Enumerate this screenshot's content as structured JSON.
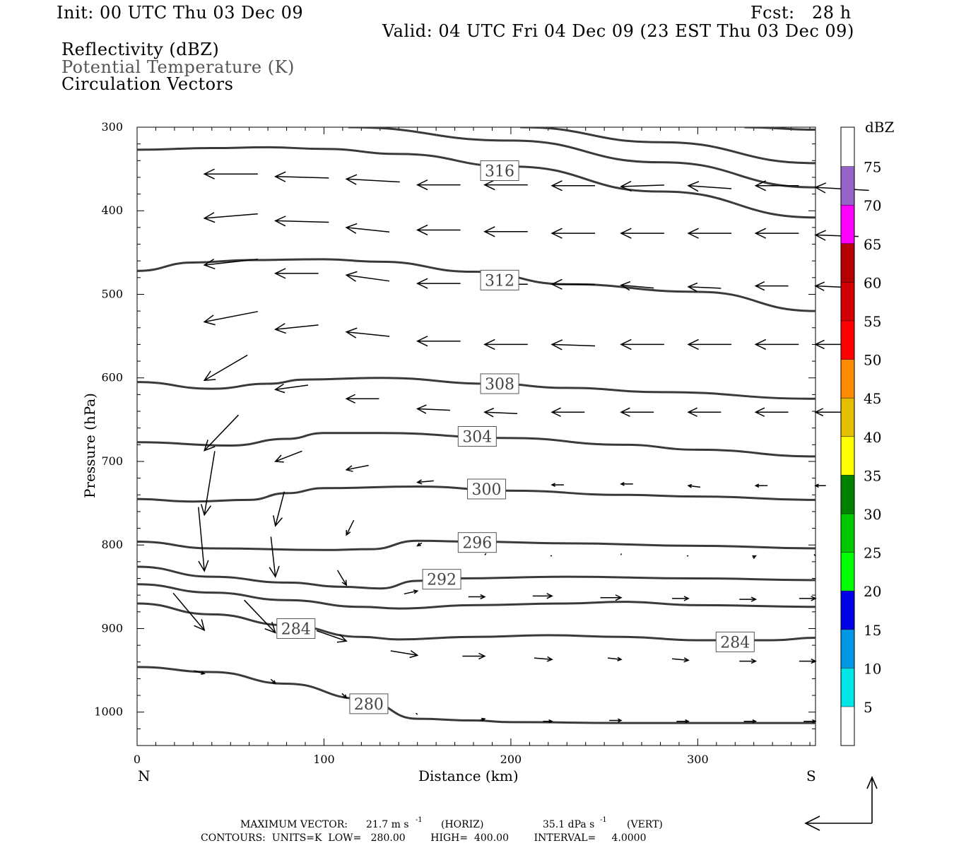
{
  "header": {
    "init": "Init: 00 UTC Thu 03 Dec 09",
    "fcst": "Fcst:   28 h",
    "valid": "Valid: 04 UTC Fri 04 Dec 09 (23 EST Thu 03 Dec 09)",
    "field1": "Reflectivity (dBZ)",
    "field2": "Potential Temperature (K)",
    "field3": "Circulation Vectors"
  },
  "footer": {
    "max_vector_label": "MAXIMUM VECTOR:",
    "max_horiz": "21.7 m s",
    "max_horiz_unit": "(HORIZ)",
    "max_vert": "35.1 dPa s",
    "max_vert_unit": "(VERT)",
    "exponent": "-1",
    "contours": "CONTOURS:  UNITS=K  LOW=   280.00        HIGH=  400.00        INTERVAL=     4.0000"
  },
  "colors": {
    "contour": "#3a3a3a",
    "vector": "#000000",
    "scale": [
      "#00e5e5",
      "#0096e6",
      "#0000e6",
      "#00ff00",
      "#00c800",
      "#008200",
      "#ffff00",
      "#e6be00",
      "#ff8c00",
      "#ff0000",
      "#d20000",
      "#b40000",
      "#ff00ff",
      "#9664c8",
      "#ffffff"
    ]
  },
  "chart_data": {
    "type": "cross-section",
    "xlabel": "Distance (km)",
    "ylabel": "Pressure (hPa)",
    "xlim": [
      0,
      363
    ],
    "ylim": [
      300,
      1040
    ],
    "xticks": [
      0,
      100,
      200,
      300
    ],
    "yticks": [
      300,
      400,
      500,
      600,
      700,
      800,
      900,
      1000
    ],
    "end_left": "N",
    "end_right": "S",
    "colorbar": {
      "title": "dBZ",
      "levels": [
        5,
        10,
        15,
        20,
        25,
        30,
        35,
        40,
        45,
        50,
        55,
        60,
        65,
        70,
        75
      ]
    },
    "contours": [
      {
        "value": 280,
        "label": "280",
        "label_at": [
          124,
          990
        ],
        "points": [
          [
            0,
            946
          ],
          [
            40,
            952
          ],
          [
            80,
            966
          ],
          [
            120,
            984
          ],
          [
            150,
            1008
          ],
          [
            180,
            1010
          ],
          [
            200,
            1012
          ],
          [
            260,
            1013
          ],
          [
            363,
            1013
          ]
        ]
      },
      {
        "value": 284,
        "label": "284",
        "label_at": [
          85,
          900
        ],
        "points": [
          [
            0,
            870
          ],
          [
            40,
            883
          ],
          [
            80,
            896
          ],
          [
            120,
            910
          ],
          [
            140,
            913
          ],
          [
            180,
            910
          ],
          [
            220,
            908
          ],
          [
            260,
            910
          ],
          [
            300,
            914
          ],
          [
            340,
            914
          ],
          [
            363,
            911
          ]
        ]
      },
      {
        "value": 284,
        "label": "284",
        "label_at": [
          320,
          916
        ],
        "points": []
      },
      {
        "value": 288,
        "label": "",
        "label_at": null,
        "points": [
          [
            0,
            847
          ],
          [
            40,
            857
          ],
          [
            80,
            866
          ],
          [
            120,
            874
          ],
          [
            140,
            876
          ],
          [
            180,
            872
          ],
          [
            230,
            870
          ],
          [
            260,
            868
          ],
          [
            300,
            872
          ],
          [
            363,
            874
          ]
        ]
      },
      {
        "value": 292,
        "label": "292",
        "label_at": [
          163,
          841
        ],
        "points": [
          [
            0,
            826
          ],
          [
            40,
            838
          ],
          [
            80,
            845
          ],
          [
            110,
            850
          ],
          [
            130,
            852
          ],
          [
            150,
            843
          ],
          [
            170,
            840
          ],
          [
            230,
            838
          ],
          [
            300,
            840
          ],
          [
            363,
            842
          ]
        ]
      },
      {
        "value": 296,
        "label": "296",
        "label_at": [
          182,
          797
        ],
        "points": [
          [
            0,
            796
          ],
          [
            40,
            804
          ],
          [
            100,
            806
          ],
          [
            125,
            805
          ],
          [
            150,
            795
          ],
          [
            180,
            796
          ],
          [
            230,
            798
          ],
          [
            300,
            801
          ],
          [
            363,
            804
          ]
        ]
      },
      {
        "value": 300,
        "label": "300",
        "label_at": [
          187,
          733
        ],
        "points": [
          [
            0,
            745
          ],
          [
            30,
            748
          ],
          [
            60,
            746
          ],
          [
            80,
            738
          ],
          [
            100,
            732
          ],
          [
            150,
            730
          ],
          [
            200,
            735
          ],
          [
            260,
            740
          ],
          [
            300,
            742
          ],
          [
            363,
            746
          ]
        ]
      },
      {
        "value": 304,
        "label": "304",
        "label_at": [
          182,
          670
        ],
        "points": [
          [
            0,
            677
          ],
          [
            50,
            681
          ],
          [
            80,
            673
          ],
          [
            100,
            666
          ],
          [
            130,
            666
          ],
          [
            200,
            672
          ],
          [
            260,
            680
          ],
          [
            300,
            686
          ],
          [
            363,
            694
          ]
        ]
      },
      {
        "value": 308,
        "label": "308",
        "label_at": [
          194,
          607
        ],
        "points": [
          [
            0,
            605
          ],
          [
            40,
            613
          ],
          [
            70,
            607
          ],
          [
            90,
            602
          ],
          [
            130,
            600
          ],
          [
            190,
            607
          ],
          [
            230,
            612
          ],
          [
            280,
            617
          ],
          [
            363,
            625
          ]
        ]
      },
      {
        "value": 312,
        "label": "312",
        "label_at": [
          194,
          483
        ],
        "points": [
          [
            0,
            472
          ],
          [
            30,
            462
          ],
          [
            60,
            459
          ],
          [
            100,
            458
          ],
          [
            130,
            461
          ],
          [
            180,
            473
          ],
          [
            230,
            488
          ],
          [
            300,
            497
          ],
          [
            363,
            520
          ]
        ]
      },
      {
        "value": 316,
        "label": "316",
        "label_at": [
          194,
          352
        ],
        "points": [
          [
            113,
            300
          ],
          [
            200,
            316
          ],
          [
            280,
            342
          ],
          [
            363,
            372
          ]
        ]
      },
      {
        "value": 320,
        "label": "",
        "label_at": null,
        "points": [
          [
            0,
            327
          ],
          [
            40,
            325
          ],
          [
            70,
            324
          ],
          [
            100,
            326
          ],
          [
            140,
            332
          ],
          [
            200,
            347
          ],
          [
            280,
            377
          ],
          [
            363,
            408
          ]
        ]
      },
      {
        "value": 324,
        "label": "",
        "label_at": null,
        "points": [
          [
            205,
            300
          ],
          [
            280,
            318
          ],
          [
            363,
            343
          ]
        ]
      },
      {
        "value": 328,
        "label": "",
        "label_at": null,
        "points": [
          [
            325,
            300
          ],
          [
            363,
            303
          ]
        ]
      }
    ],
    "vectors": [
      {
        "x": 36,
        "p": 356,
        "u": -36,
        "v": 0
      },
      {
        "x": 74,
        "p": 359,
        "u": -36,
        "v": -1
      },
      {
        "x": 112,
        "p": 362,
        "u": -36,
        "v": -2
      },
      {
        "x": 150,
        "p": 369,
        "u": -29,
        "v": 0
      },
      {
        "x": 186,
        "p": 369,
        "u": -29,
        "v": 0
      },
      {
        "x": 222,
        "p": 370,
        "u": -29,
        "v": 0
      },
      {
        "x": 259,
        "p": 371,
        "u": -29,
        "v": 1
      },
      {
        "x": 295,
        "p": 370,
        "u": -29,
        "v": -2
      },
      {
        "x": 331,
        "p": 370,
        "u": -29,
        "v": 0
      },
      {
        "x": 363,
        "p": 372,
        "u": -36,
        "v": -2
      },
      {
        "x": 36,
        "p": 409,
        "u": -36,
        "v": 3
      },
      {
        "x": 74,
        "p": 412,
        "u": -36,
        "v": -1
      },
      {
        "x": 112,
        "p": 420,
        "u": -29,
        "v": -3
      },
      {
        "x": 150,
        "p": 423,
        "u": -29,
        "v": 0
      },
      {
        "x": 186,
        "p": 425,
        "u": -29,
        "v": 0
      },
      {
        "x": 222,
        "p": 427,
        "u": -29,
        "v": 0
      },
      {
        "x": 259,
        "p": 427,
        "u": -29,
        "v": 0
      },
      {
        "x": 295,
        "p": 427,
        "u": -29,
        "v": 0
      },
      {
        "x": 331,
        "p": 427,
        "u": -29,
        "v": 0
      },
      {
        "x": 363,
        "p": 429,
        "u": -29,
        "v": -1
      },
      {
        "x": 36,
        "p": 465,
        "u": -36,
        "v": 4
      },
      {
        "x": 74,
        "p": 475,
        "u": -29,
        "v": 0
      },
      {
        "x": 112,
        "p": 477,
        "u": -29,
        "v": -4
      },
      {
        "x": 150,
        "p": 487,
        "u": -29,
        "v": 0
      },
      {
        "x": 186,
        "p": 488,
        "u": -29,
        "v": 0
      },
      {
        "x": 222,
        "p": 488,
        "u": -29,
        "v": 0
      },
      {
        "x": 259,
        "p": 489,
        "u": -22,
        "v": -2
      },
      {
        "x": 295,
        "p": 491,
        "u": -22,
        "v": -1
      },
      {
        "x": 331,
        "p": 490,
        "u": -22,
        "v": 0
      },
      {
        "x": 363,
        "p": 490,
        "u": -22,
        "v": -1
      },
      {
        "x": 36,
        "p": 533,
        "u": -36,
        "v": 7
      },
      {
        "x": 74,
        "p": 542,
        "u": -29,
        "v": 3
      },
      {
        "x": 112,
        "p": 545,
        "u": -29,
        "v": -3
      },
      {
        "x": 150,
        "p": 556,
        "u": -29,
        "v": 0
      },
      {
        "x": 186,
        "p": 560,
        "u": -29,
        "v": 0
      },
      {
        "x": 222,
        "p": 560,
        "u": -29,
        "v": -1
      },
      {
        "x": 259,
        "p": 560,
        "u": -29,
        "v": 0
      },
      {
        "x": 295,
        "p": 560,
        "u": -29,
        "v": 0
      },
      {
        "x": 331,
        "p": 560,
        "u": -29,
        "v": 0
      },
      {
        "x": 363,
        "p": 560,
        "u": -22,
        "v": 0
      },
      {
        "x": 36,
        "p": 603,
        "u": -29,
        "v": 17
      },
      {
        "x": 74,
        "p": 614,
        "u": -22,
        "v": 3
      },
      {
        "x": 112,
        "p": 625,
        "u": -22,
        "v": 0
      },
      {
        "x": 150,
        "p": 637,
        "u": -22,
        "v": -1
      },
      {
        "x": 186,
        "p": 641,
        "u": -22,
        "v": -1
      },
      {
        "x": 222,
        "p": 641,
        "u": -22,
        "v": 0
      },
      {
        "x": 259,
        "p": 641,
        "u": -22,
        "v": 0
      },
      {
        "x": 295,
        "p": 641,
        "u": -22,
        "v": 0
      },
      {
        "x": 331,
        "p": 641,
        "u": -22,
        "v": 0
      },
      {
        "x": 363,
        "p": 641,
        "u": -19,
        "v": 0
      },
      {
        "x": 36,
        "p": 687,
        "u": -23,
        "v": 24
      },
      {
        "x": 74,
        "p": 700,
        "u": -18,
        "v": 7
      },
      {
        "x": 112,
        "p": 710,
        "u": -15,
        "v": 3
      },
      {
        "x": 150,
        "p": 725,
        "u": -11,
        "v": 1
      },
      {
        "x": 186,
        "p": 726,
        "u": -8,
        "v": 1
      },
      {
        "x": 222,
        "p": 728,
        "u": -8,
        "v": 0
      },
      {
        "x": 259,
        "p": 727,
        "u": -8,
        "v": 0
      },
      {
        "x": 295,
        "p": 729,
        "u": -8,
        "v": -1
      },
      {
        "x": 331,
        "p": 729,
        "u": -8,
        "v": 0
      },
      {
        "x": 363,
        "p": 729,
        "u": -7,
        "v": 0
      },
      {
        "x": 36,
        "p": 764,
        "u": -7,
        "v": 43
      },
      {
        "x": 74,
        "p": 777,
        "u": -6,
        "v": 23
      },
      {
        "x": 112,
        "p": 788,
        "u": -5,
        "v": 10
      },
      {
        "x": 150,
        "p": 801,
        "u": -3,
        "v": 2
      },
      {
        "x": 186,
        "p": 812,
        "u": -1,
        "v": 1
      },
      {
        "x": 222,
        "p": 813,
        "u": 1,
        "v": 0
      },
      {
        "x": 259,
        "p": 812,
        "u": 0,
        "v": 1
      },
      {
        "x": 295,
        "p": 813,
        "u": 1,
        "v": 0
      },
      {
        "x": 331,
        "p": 813,
        "u": 2,
        "v": -1
      },
      {
        "x": 363,
        "p": 813,
        "u": 1,
        "v": 1
      },
      {
        "x": 36,
        "p": 831,
        "u": 4,
        "v": 43
      },
      {
        "x": 74,
        "p": 838,
        "u": 3,
        "v": 27
      },
      {
        "x": 112,
        "p": 848,
        "u": 6,
        "v": 10
      },
      {
        "x": 150,
        "p": 855,
        "u": 9,
        "v": -2
      },
      {
        "x": 186,
        "p": 862,
        "u": 11,
        "v": 0
      },
      {
        "x": 222,
        "p": 861,
        "u": 13,
        "v": 0
      },
      {
        "x": 259,
        "p": 863,
        "u": 14,
        "v": 0
      },
      {
        "x": 295,
        "p": 864,
        "u": 11,
        "v": 0
      },
      {
        "x": 331,
        "p": 865,
        "u": 11,
        "v": 0
      },
      {
        "x": 363,
        "p": 864,
        "u": 11,
        "v": 0
      },
      {
        "x": 36,
        "p": 902,
        "u": 21,
        "v": 25
      },
      {
        "x": 74,
        "p": 905,
        "u": 21,
        "v": 22
      },
      {
        "x": 112,
        "p": 915,
        "u": 20,
        "v": 7
      },
      {
        "x": 150,
        "p": 932,
        "u": 18,
        "v": 3
      },
      {
        "x": 186,
        "p": 933,
        "u": 15,
        "v": 0
      },
      {
        "x": 222,
        "p": 937,
        "u": 12,
        "v": 1
      },
      {
        "x": 259,
        "p": 937,
        "u": 9,
        "v": 1
      },
      {
        "x": 295,
        "p": 938,
        "u": 11,
        "v": 1
      },
      {
        "x": 331,
        "p": 939,
        "u": 11,
        "v": 0
      },
      {
        "x": 363,
        "p": 939,
        "u": 11,
        "v": 0
      },
      {
        "x": 36,
        "p": 954,
        "u": 7,
        "v": 2
      },
      {
        "x": 74,
        "p": 966,
        "u": 3,
        "v": 3
      },
      {
        "x": 112,
        "p": 983,
        "u": 3,
        "v": 3
      },
      {
        "x": 150,
        "p": 1003,
        "u": 1,
        "v": 1
      },
      {
        "x": 186,
        "p": 1008,
        "u": 3,
        "v": -1
      },
      {
        "x": 222,
        "p": 1011,
        "u": 6,
        "v": 0
      },
      {
        "x": 259,
        "p": 1010,
        "u": 8,
        "v": 0
      },
      {
        "x": 295,
        "p": 1011,
        "u": 8,
        "v": 0
      },
      {
        "x": 331,
        "p": 1011,
        "u": 8,
        "v": 0
      },
      {
        "x": 363,
        "p": 1011,
        "u": 8,
        "v": 0
      }
    ]
  }
}
